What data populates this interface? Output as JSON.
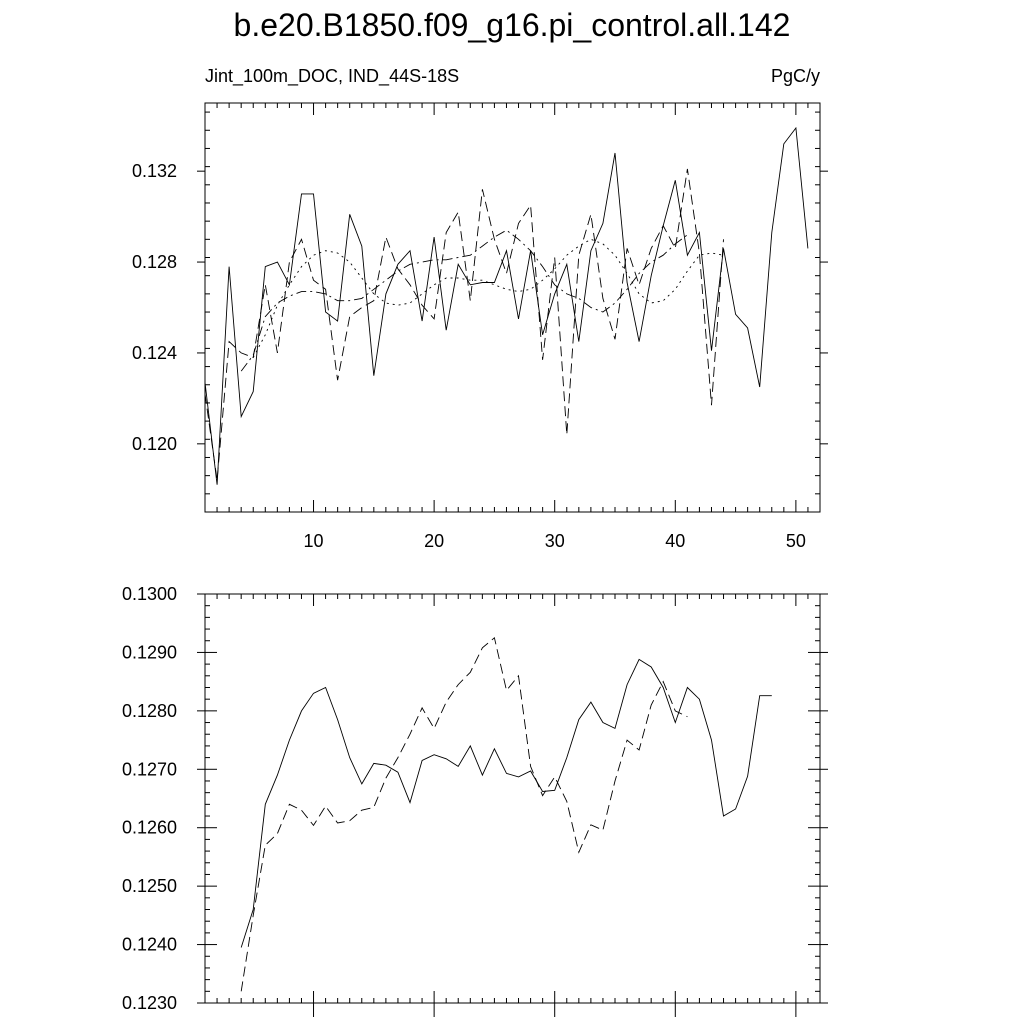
{
  "title": "b.e20.B1850.f09_g16.pi_control.all.142",
  "chart_data": [
    {
      "type": "line",
      "left_label": "Jint_100m_DOC, IND_44S-18S",
      "right_label": "PgC/y",
      "xlim": [
        1,
        52
      ],
      "ylim": [
        0.117,
        0.135
      ],
      "x_ticks": [
        10,
        20,
        30,
        40,
        50
      ],
      "y_ticks": [
        0.12,
        0.124,
        0.128,
        0.132
      ],
      "y_tick_labels": [
        "0.120",
        "0.124",
        "0.128",
        "0.132"
      ],
      "series": [
        {
          "style": "solid",
          "x_start": 1,
          "values": [
            0.1227,
            0.1182,
            0.1278,
            0.1212,
            0.1223,
            0.1278,
            0.128,
            0.127,
            0.131,
            0.131,
            0.1258,
            0.1254,
            0.1301,
            0.1287,
            0.123,
            0.1266,
            0.1279,
            0.1285,
            0.1254,
            0.1291,
            0.125,
            0.1279,
            0.127,
            0.1271,
            0.1271,
            0.1285,
            0.1255,
            0.1285,
            0.1248,
            0.1266,
            0.1279,
            0.1245,
            0.1285,
            0.1297,
            0.1328,
            0.1271,
            0.1245,
            0.1274,
            0.1296,
            0.1316,
            0.1283,
            0.1293,
            0.1241,
            0.1286,
            0.1257,
            0.1251,
            0.1225,
            0.1293,
            0.1332,
            0.1339,
            0.1286
          ]
        },
        {
          "style": "dashed",
          "x_start": 1,
          "values": [
            0.1222,
            0.1184,
            0.1245,
            0.124,
            0.1238,
            0.127,
            0.124,
            0.128,
            0.129,
            0.1272,
            0.1268,
            0.1228,
            0.1256,
            0.126,
            0.1263,
            0.1291,
            0.1277,
            0.127,
            0.1261,
            0.1255,
            0.1293,
            0.1302,
            0.1263,
            0.1312,
            0.129,
            0.1275,
            0.1297,
            0.1305,
            0.1237,
            0.1282,
            0.1204,
            0.1283,
            0.1301,
            0.1264,
            0.1246,
            0.1286,
            0.127,
            0.1286,
            0.1296,
            0.1286,
            0.1321,
            0.1284,
            0.1217,
            0.129
          ]
        },
        {
          "style": "dot-dash",
          "x_start": 4,
          "values": [
            0.1232,
            0.1239,
            0.1256,
            0.1262,
            0.1265,
            0.1267,
            0.1267,
            0.1266,
            0.1263,
            0.1263,
            0.1264,
            0.1268,
            0.1272,
            0.1276,
            0.1279,
            0.128,
            0.1281,
            0.1281,
            0.1282,
            0.1283,
            0.1287,
            0.1291,
            0.1294,
            0.129,
            0.1285,
            0.1278,
            0.127,
            0.1266,
            0.1264,
            0.126,
            0.1258,
            0.1262,
            0.1268,
            0.1275,
            0.128,
            0.1283,
            0.1288,
            0.1292
          ]
        },
        {
          "style": "dotted",
          "x_start": 5,
          "values": [
            0.1238,
            0.1248,
            0.1261,
            0.127,
            0.1278,
            0.1283,
            0.1285,
            0.1284,
            0.128,
            0.1273,
            0.1266,
            0.1262,
            0.1261,
            0.1262,
            0.1266,
            0.127,
            0.1273,
            0.1273,
            0.1272,
            0.1272,
            0.127,
            0.1268,
            0.1267,
            0.1268,
            0.1272,
            0.1277,
            0.1283,
            0.1287,
            0.129,
            0.1288,
            0.1283,
            0.1275,
            0.1266,
            0.1262,
            0.1263,
            0.1268,
            0.1276,
            0.1283,
            0.1284,
            0.1283
          ]
        }
      ]
    },
    {
      "type": "line",
      "xlim": [
        1,
        52
      ],
      "ylim": [
        0.123,
        0.13
      ],
      "x_ticks": [
        10,
        20,
        30,
        40,
        50
      ],
      "y_ticks": [
        0.123,
        0.124,
        0.125,
        0.126,
        0.127,
        0.128,
        0.129,
        0.13
      ],
      "y_tick_labels": [
        "0.1230",
        "0.1240",
        "0.1250",
        "0.1260",
        "0.1270",
        "0.1280",
        "0.1290",
        "0.1300"
      ],
      "series": [
        {
          "style": "solid",
          "x_start": 4,
          "values": [
            0.12395,
            0.1246,
            0.1264,
            0.1269,
            0.1275,
            0.128,
            0.1283,
            0.1284,
            0.12785,
            0.1272,
            0.12675,
            0.1271,
            0.12707,
            0.12695,
            0.12643,
            0.12715,
            0.12725,
            0.12718,
            0.12705,
            0.1274,
            0.1269,
            0.12735,
            0.12693,
            0.12687,
            0.12697,
            0.12662,
            0.12664,
            0.1272,
            0.12785,
            0.12815,
            0.1278,
            0.1277,
            0.12845,
            0.12888,
            0.12875,
            0.1284,
            0.1278,
            0.1284,
            0.1282,
            0.1275,
            0.1262,
            0.12632,
            0.12688,
            0.12826,
            0.12826
          ]
        },
        {
          "style": "dashed",
          "x_start": 4,
          "values": [
            0.1232,
            0.1245,
            0.1257,
            0.1259,
            0.1264,
            0.1263,
            0.12604,
            0.12637,
            0.12608,
            0.12612,
            0.1263,
            0.12635,
            0.12685,
            0.1272,
            0.1276,
            0.12805,
            0.1277,
            0.12815,
            0.12845,
            0.12866,
            0.12908,
            0.12925,
            0.12835,
            0.1286,
            0.12705,
            0.12655,
            0.12687,
            0.12645,
            0.12558,
            0.12605,
            0.12596,
            0.1268,
            0.1275,
            0.12733,
            0.1281,
            0.1285,
            0.128,
            0.1279
          ]
        }
      ]
    }
  ]
}
